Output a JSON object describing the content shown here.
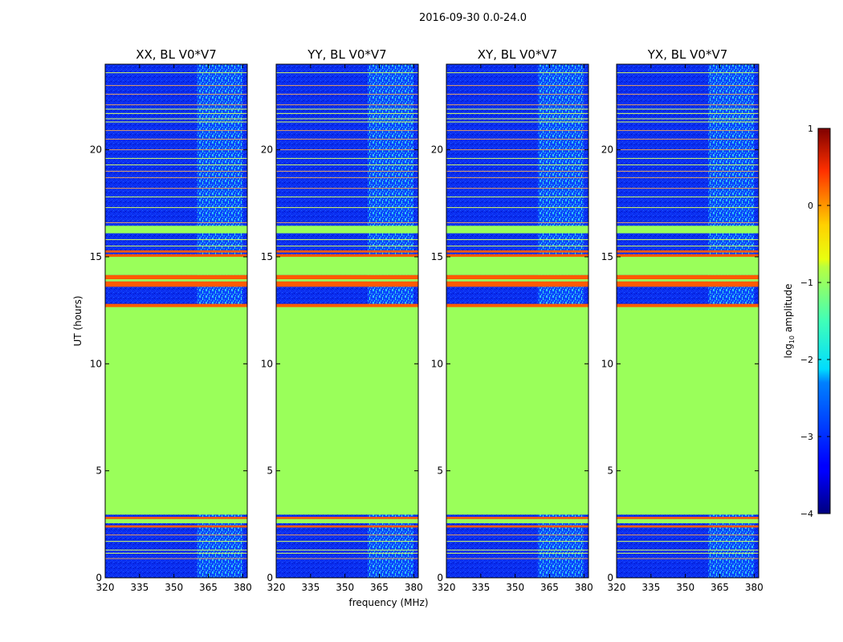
{
  "suptitle": "2016-09-30 0.0-24.0",
  "xlabel": "frequency (MHz)",
  "ylabel": "UT (hours)",
  "colorbar": {
    "label": "log10 amplitude",
    "label_base": "log",
    "label_sub": "10",
    "label_rest": " amplitude",
    "range": [
      -4,
      1
    ],
    "ticks": [
      1,
      0,
      -1,
      -2,
      -3,
      -4
    ],
    "tick_labels": [
      "1",
      "0",
      "−1",
      "−2",
      "−3",
      "−4"
    ],
    "colormap": "jet"
  },
  "colors": {
    "background_noise": "#0a2ef0",
    "flag_fill": "#9aff5a",
    "flag_red": "#ff5a00",
    "flag_yellow": "#d8ff30",
    "signal_cyan": "#33d8ff"
  },
  "chart_data": {
    "type": "heatmap",
    "x_range": [
      320,
      382
    ],
    "xticks": [
      320,
      335,
      350,
      365,
      380
    ],
    "xtick_labels": [
      "320",
      "335",
      "350",
      "365",
      "380"
    ],
    "y_range": [
      0,
      24
    ],
    "yticks": [
      0,
      5,
      10,
      15,
      20
    ],
    "ytick_labels": [
      "0",
      "5",
      "10",
      "15",
      "20"
    ],
    "rfi_band_mhz": [
      360,
      380
    ],
    "panels": [
      {
        "title": "XX, BL V0*V7"
      },
      {
        "title": "YY, BL V0*V7"
      },
      {
        "title": "XY, BL V0*V7"
      },
      {
        "title": "YX, BL V0*V7"
      }
    ],
    "bands_hours": [
      {
        "from": 3.3,
        "to": 12.7,
        "log_amp": -1.3,
        "label": "flagged green"
      },
      {
        "from": 12.65,
        "to": 12.8,
        "log_amp": 0.0,
        "label": "red edge"
      },
      {
        "from": 13.6,
        "to": 13.85,
        "log_amp": 0.1,
        "label": "red stripe"
      },
      {
        "from": 13.85,
        "to": 13.95,
        "log_amp": -1.3,
        "label": "green"
      },
      {
        "from": 13.95,
        "to": 14.15,
        "log_amp": 0.1,
        "label": "red stripe"
      },
      {
        "from": 14.15,
        "to": 15.0,
        "log_amp": -1.3,
        "label": "flagged green"
      },
      {
        "from": 15.0,
        "to": 15.12,
        "log_amp": 0.0,
        "label": "red edge"
      },
      {
        "from": 15.2,
        "to": 15.3,
        "log_amp": 0.0,
        "label": "red edge"
      },
      {
        "from": 16.1,
        "to": 16.45,
        "log_amp": -1.3,
        "label": "green"
      },
      {
        "from": 2.35,
        "to": 2.45,
        "log_amp": 0.0,
        "label": "red"
      },
      {
        "from": 2.55,
        "to": 2.75,
        "log_amp": -1.3,
        "label": "green"
      },
      {
        "from": 2.75,
        "to": 2.85,
        "log_amp": 0.0,
        "label": "red"
      },
      {
        "from": 2.95,
        "to": 3.3,
        "log_amp": -1.3,
        "label": "green"
      }
    ],
    "thin_lines_hours": [
      0.9,
      1.15,
      1.3,
      1.7,
      2.0,
      15.5,
      15.8,
      16.6,
      17.3,
      17.8,
      18.2,
      18.7,
      19.0,
      19.3,
      19.6,
      20.0,
      20.5,
      20.9,
      21.3,
      21.45,
      21.7,
      21.9,
      22.1,
      22.6,
      23.0,
      23.6
    ]
  }
}
